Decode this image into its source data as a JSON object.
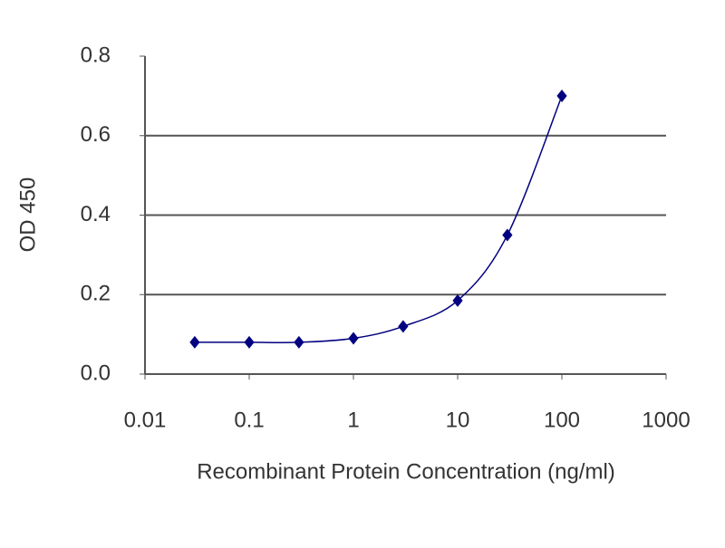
{
  "chart_data": {
    "type": "line",
    "x_label": "Recombinant Protein Concentration (ng/ml)",
    "y_label": "OD 450",
    "x": [
      0.03,
      0.1,
      0.3,
      1,
      3,
      10,
      30,
      100
    ],
    "series": [
      {
        "color": "#000080",
        "values": [
          0.08,
          0.08,
          0.08,
          0.09,
          0.12,
          0.185,
          0.35,
          0.7
        ]
      }
    ],
    "x_log": true,
    "smooth": true,
    "marker": "diamond",
    "xlim": [
      0.01,
      1000
    ],
    "xticks": [
      0.01,
      0.1,
      1,
      10,
      100,
      1000
    ],
    "ylim": [
      0,
      0.8
    ],
    "yticks": [
      {
        "value": 0,
        "label": "0.0"
      },
      0.2,
      0.4,
      0.6,
      0.8
    ],
    "grid": true
  }
}
